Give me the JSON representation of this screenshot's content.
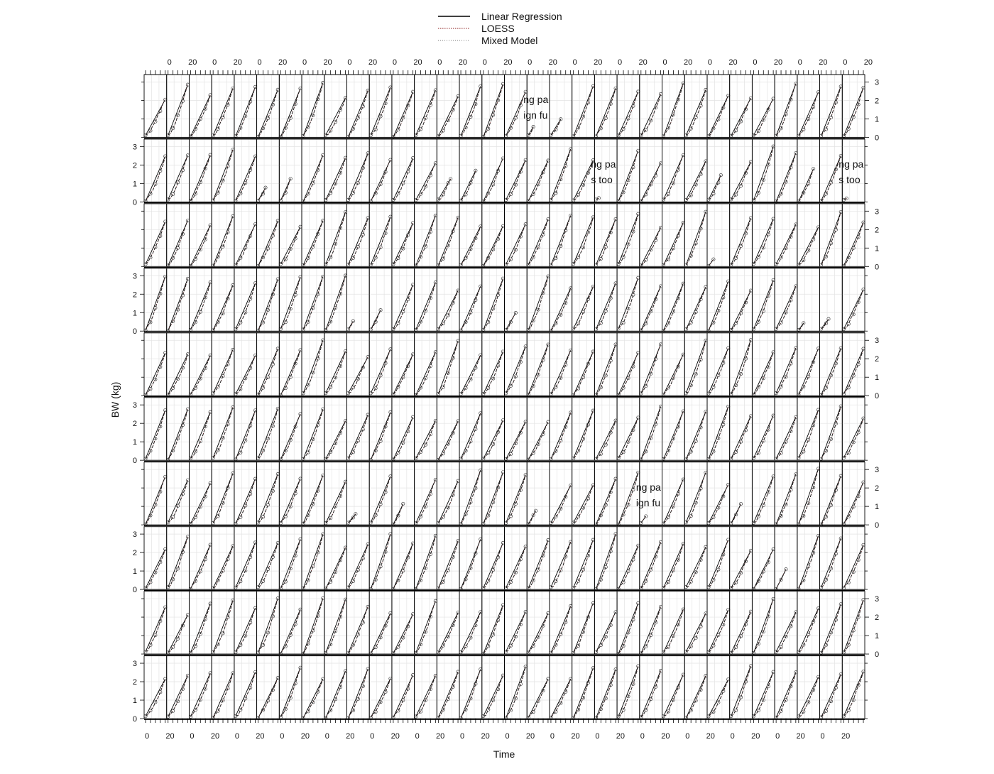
{
  "chart_data": {
    "type": "line",
    "title": "",
    "xlabel": "Time",
    "ylabel": "BW (kg)",
    "layout": {
      "columns": 32,
      "rows": 10
    },
    "x_tick_labels": [
      "0",
      "20"
    ],
    "y_tick_labels": [
      "0",
      "1",
      "2",
      "3"
    ],
    "ylim": [
      0,
      3.4
    ],
    "grid": true,
    "legend_position": "top-center",
    "legend": [
      {
        "name": "Linear Regression",
        "color": "#000000",
        "line": "solid"
      },
      {
        "name": "LOESS",
        "color": "#8b1a1a",
        "line": "dotted"
      },
      {
        "name": "Mixed Model",
        "color": "#777777",
        "line": "dotted"
      }
    ],
    "overflow_text": [
      {
        "row": 0,
        "col": 17,
        "lines": [
          "ng pa",
          "ign fu"
        ]
      },
      {
        "row": 1,
        "col": 20,
        "lines": [
          "ng pa",
          "s too"
        ]
      },
      {
        "row": 1,
        "col": 31,
        "lines": [
          "ng pa",
          "s too"
        ]
      },
      {
        "row": 6,
        "col": 22,
        "lines": [
          "ng pa",
          "ign fu"
        ]
      }
    ],
    "series_pattern": "each panel shows an individual growth curve of body weight rising from about 0.1 kg to between 2 and 3 kg over time"
  }
}
